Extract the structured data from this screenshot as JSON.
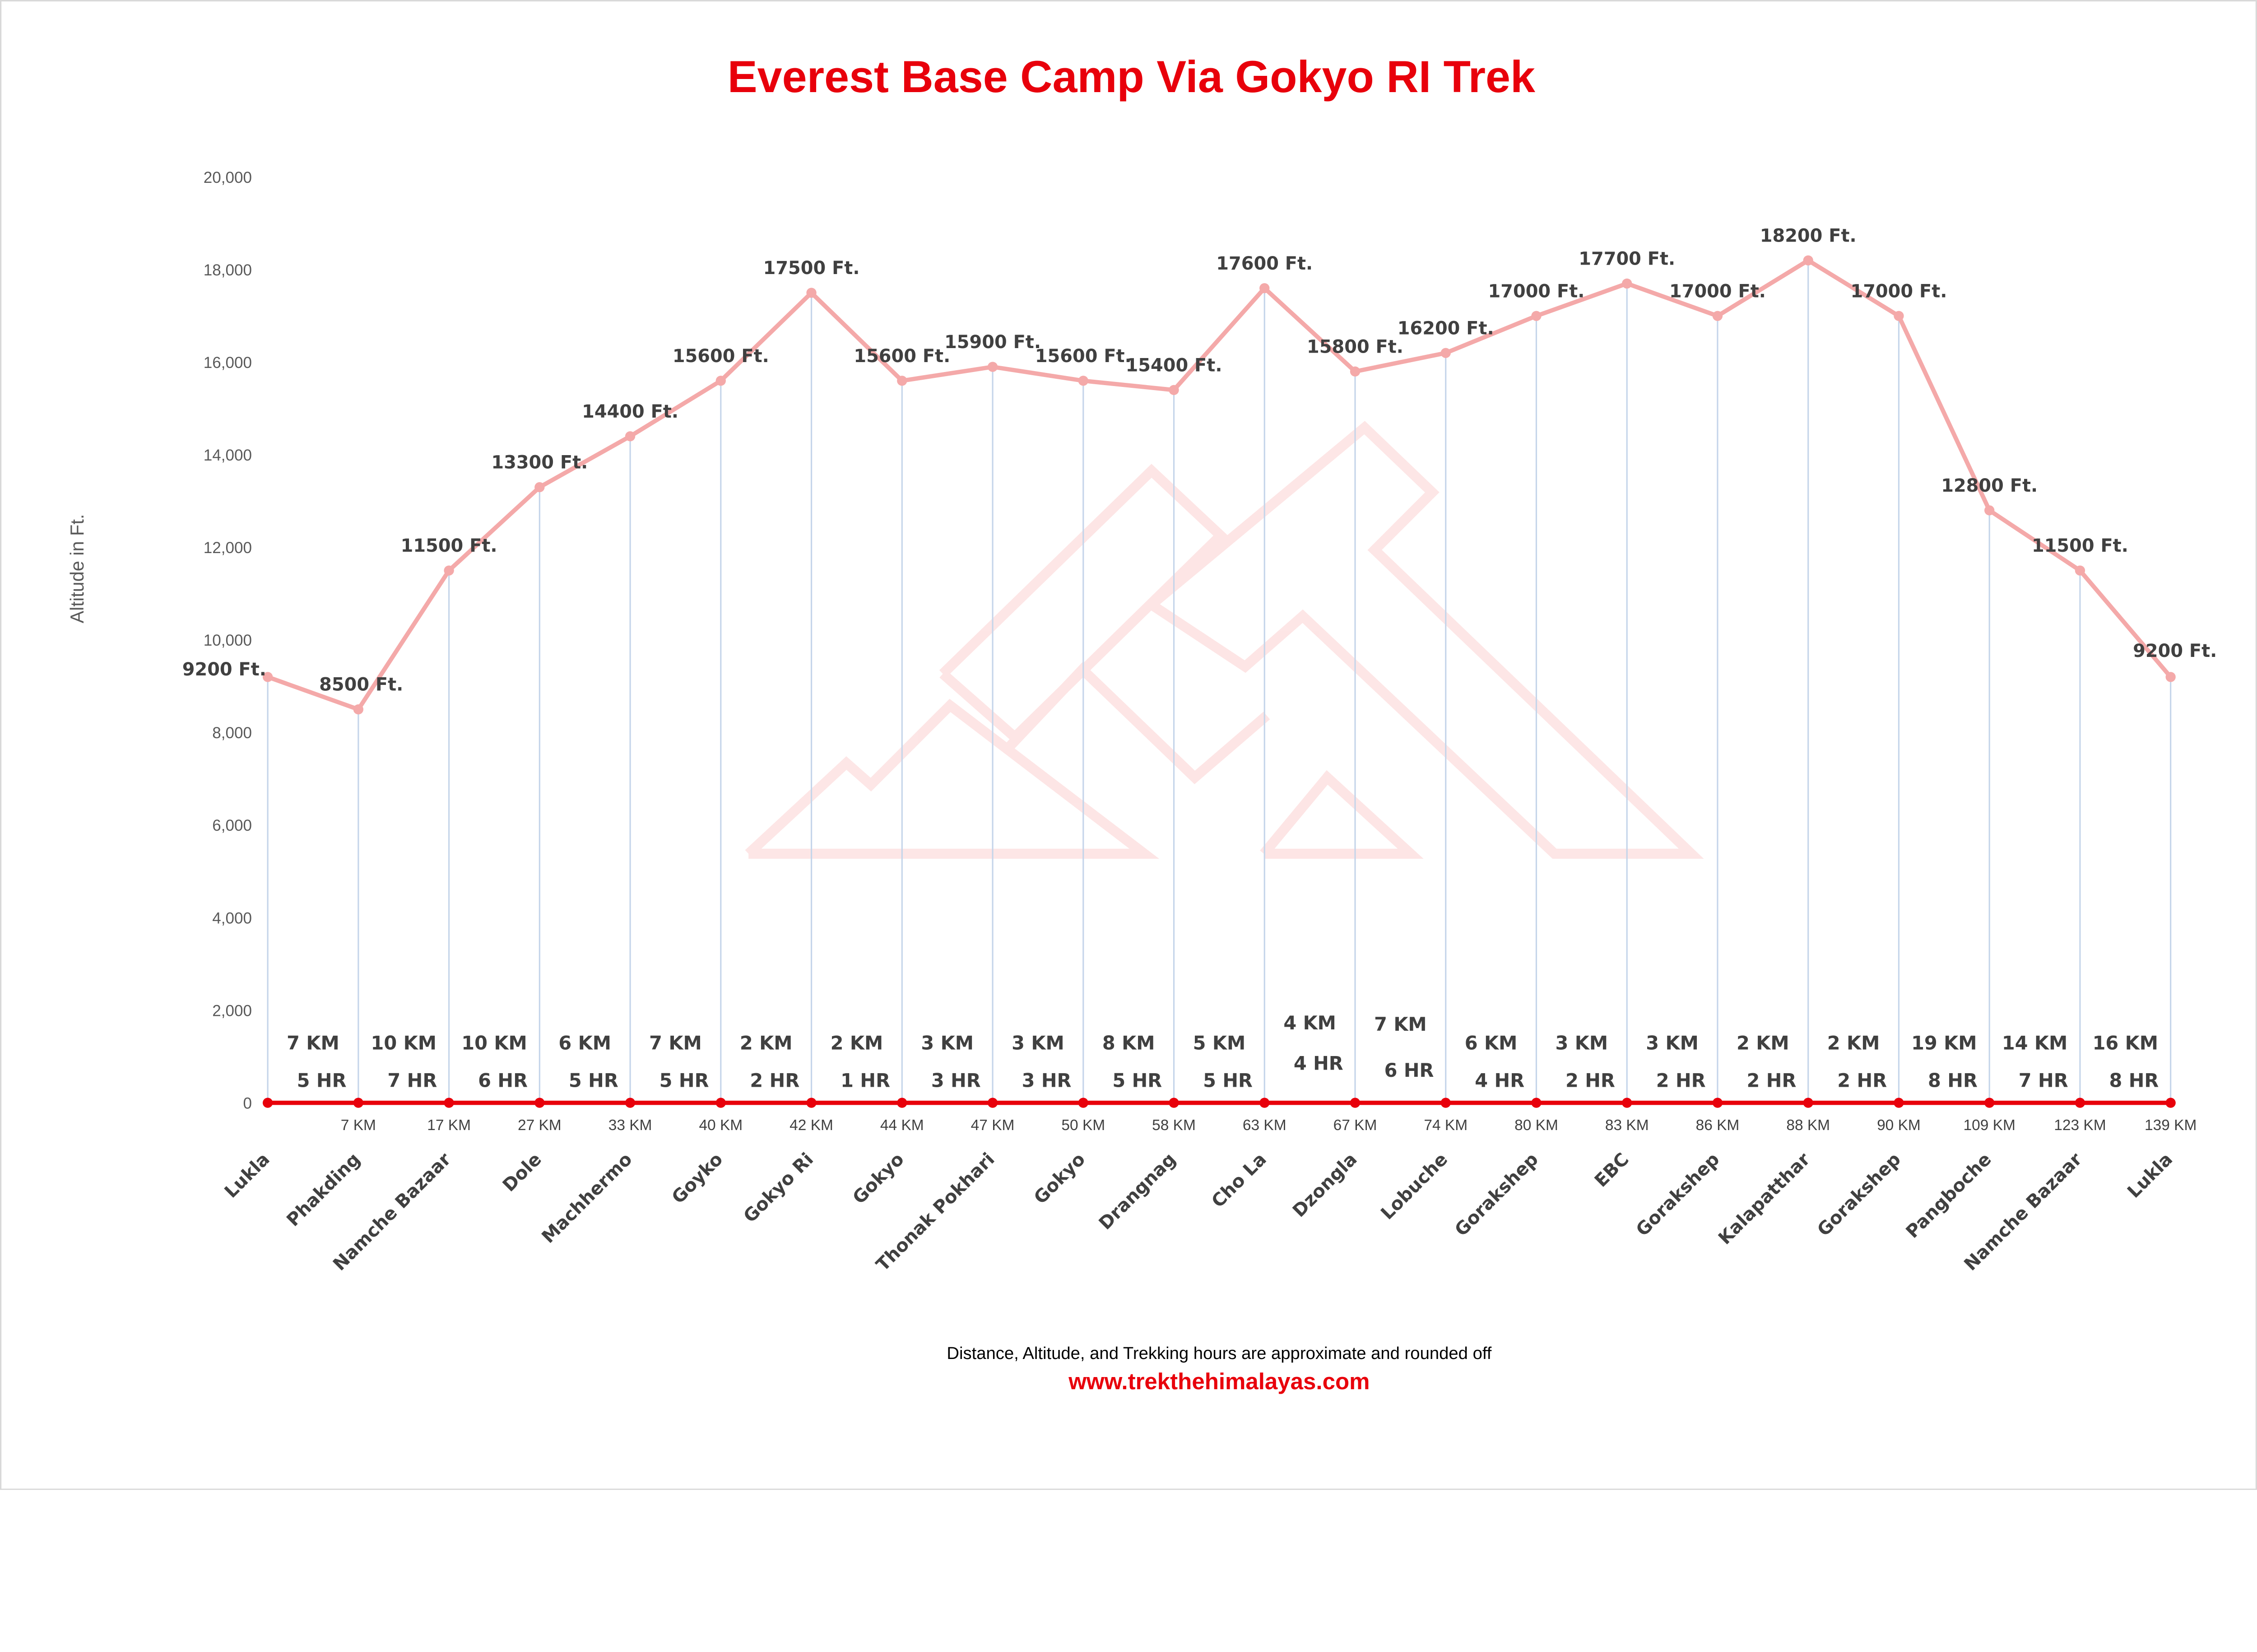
{
  "chart_data": {
    "type": "line",
    "title": "Everest Base Camp Via Gokyo RI Trek",
    "ylabel": "Altitude in Ft.",
    "xlabel": "",
    "ylim": [
      0,
      20000
    ],
    "yticks": [
      "0",
      "2,000",
      "4,000",
      "6,000",
      "8,000",
      "10,000",
      "12,000",
      "14,000",
      "16,000",
      "18,000",
      "20,000"
    ],
    "grid": "vertical lines at each stop",
    "categories": [
      "Lukla",
      "Phakding",
      "Namche Bazaar",
      "Dole",
      "Machhermo",
      "Goyko",
      "Gokyo Ri",
      "Gokyo",
      "Thonak Pokhari",
      "Gokyo",
      "Drangnag",
      "Cho La",
      "Dzongla",
      "Lobuche",
      "Gorakshep",
      "EBC",
      "Gorakshep",
      "Kalapatthar",
      "Gorakshep",
      "Pangboche",
      "Namche Bazaar",
      "Lukla"
    ],
    "values": [
      9200,
      8500,
      11500,
      13300,
      14400,
      15600,
      17500,
      15600,
      15900,
      15600,
      15400,
      17600,
      15800,
      16200,
      17000,
      17700,
      17000,
      18200,
      17000,
      12800,
      11500,
      9200
    ],
    "value_labels": [
      "9200 Ft.",
      "8500 Ft.",
      "11500 Ft.",
      "13300 Ft.",
      "14400 Ft.",
      "15600 Ft.",
      "17500 Ft.",
      "15600 Ft.",
      "15900 Ft.",
      "15600 Ft.",
      "15400 Ft.",
      "17600 Ft.",
      "15800 Ft.",
      "16200 Ft.",
      "17000 Ft.",
      "17700 Ft.",
      "17000 Ft.",
      "18200 Ft.",
      "17000 Ft.",
      "12800 Ft.",
      "11500 Ft.",
      "9200 Ft."
    ],
    "cumulative_distance": [
      "",
      "7 KM",
      "17 KM",
      "27 KM",
      "33 KM",
      "40 KM",
      "42 KM",
      "44 KM",
      "47 KM",
      "50 KM",
      "58 KM",
      "63 KM",
      "67 KM",
      "74 KM",
      "80 KM",
      "83 KM",
      "86 KM",
      "88 KM",
      "90 KM",
      "109 KM",
      "123 KM",
      "139 KM"
    ],
    "segments": [
      {
        "km": "7 KM",
        "hr": "5 HR"
      },
      {
        "km": "10 KM",
        "hr": "7 HR"
      },
      {
        "km": "10 KM",
        "hr": "6 HR"
      },
      {
        "km": "6 KM",
        "hr": "5 HR"
      },
      {
        "km": "7 KM",
        "hr": "5 HR"
      },
      {
        "km": "2 KM",
        "hr": "2 HR"
      },
      {
        "km": "2 KM",
        "hr": "1 HR"
      },
      {
        "km": "3 KM",
        "hr": "3 HR"
      },
      {
        "km": "3 KM",
        "hr": "3 HR"
      },
      {
        "km": "8 KM",
        "hr": "5 HR"
      },
      {
        "km": "5 KM",
        "hr": "5 HR"
      },
      {
        "km": "4 KM",
        "hr": "4 HR"
      },
      {
        "km": "7 KM",
        "hr": "6 HR"
      },
      {
        "km": "6 KM",
        "hr": "4 HR"
      },
      {
        "km": "3 KM",
        "hr": "2 HR"
      },
      {
        "km": "3 KM",
        "hr": "2 HR"
      },
      {
        "km": "2 KM",
        "hr": "2 HR"
      },
      {
        "km": "2 KM",
        "hr": "2 HR"
      },
      {
        "km": "19 KM",
        "hr": "8 HR"
      },
      {
        "km": "14 KM",
        "hr": "7 HR"
      },
      {
        "km": "16 KM",
        "hr": "8 HR"
      }
    ],
    "colors": {
      "altitude_line": "#f4a9a9",
      "baseline": "#e8000b",
      "gridline": "#c5d5ea",
      "title": "#e8000b"
    }
  },
  "footer": {
    "note": "Distance, Altitude, and Trekking hours are approximate and rounded off",
    "website": "www.trekthehimalayas.com"
  }
}
